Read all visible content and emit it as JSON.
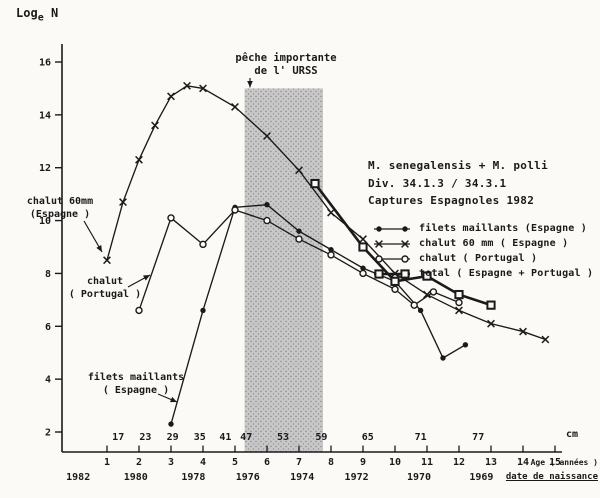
{
  "chart_data": {
    "type": "line",
    "title_block": {
      "line1": "M. senegalensis + M. polli",
      "line2": "Div. 34.1.3  /  34.3.1",
      "line3": "Captures Espagnoles 1982"
    },
    "y_axis": {
      "label": "Log",
      "label_sub": "e",
      "label_unit": "N",
      "lim": [
        2,
        16
      ],
      "ticks": [
        16,
        14,
        12,
        10,
        8,
        6,
        4,
        2
      ]
    },
    "x_axis": {
      "age_label": "Age ( années )",
      "age_lim": [
        0,
        15
      ],
      "age_ticks": [
        1,
        2,
        3,
        4,
        5,
        6,
        7,
        8,
        9,
        10,
        11,
        12,
        13,
        14,
        15
      ],
      "cm_label": "cm",
      "cm_ticks": [
        {
          "cm": "17",
          "age": 1.35
        },
        {
          "cm": "23",
          "age": 2.2
        },
        {
          "cm": "29",
          "age": 3.05
        },
        {
          "cm": "35",
          "age": 3.9
        },
        {
          "cm": "41",
          "age": 4.7
        },
        {
          "cm": "47",
          "age": 5.35
        },
        {
          "cm": "53",
          "age": 6.5
        },
        {
          "cm": "59",
          "age": 7.7
        },
        {
          "cm": "65",
          "age": 9.15
        },
        {
          "cm": "71",
          "age": 10.8
        },
        {
          "cm": "77",
          "age": 12.6
        }
      ],
      "birth_label": "date de naissance",
      "birth_years": [
        {
          "year": "1982",
          "age": 0.1
        },
        {
          "year": "1980",
          "age": 1.9
        },
        {
          "year": "1978",
          "age": 3.7
        },
        {
          "year": "1976",
          "age": 5.4
        },
        {
          "year": "1974",
          "age": 7.1
        },
        {
          "year": "1972",
          "age": 8.8
        },
        {
          "year": "1970",
          "age": 10.75
        },
        {
          "year": "1969",
          "age": 12.7
        }
      ]
    },
    "band": {
      "line1": "pêche importante",
      "line2": "de l' URSS",
      "age_from": 5.3,
      "age_to": 7.75,
      "top_value": 15.0
    },
    "inplot_labels": {
      "chalut60": {
        "line1": "chalut 60mm",
        "line2": "(Espagne )"
      },
      "portugal": {
        "line1": "chalut",
        "line2": "( Portugal )"
      },
      "filets": {
        "line1": "filets maillants",
        "line2": "( Espagne )"
      }
    },
    "series": [
      {
        "id": "filets-maillants-espagne",
        "name": "filets maillants (Espagne )",
        "marker": "dot",
        "bold": false,
        "points": [
          [
            3,
            2.3
          ],
          [
            4,
            6.6
          ],
          [
            5,
            10.5
          ],
          [
            6,
            10.6
          ],
          [
            7,
            9.6
          ],
          [
            8,
            8.9
          ],
          [
            9,
            8.2
          ],
          [
            10,
            7.7
          ],
          [
            10.8,
            6.6
          ],
          [
            11.5,
            4.8
          ],
          [
            12.2,
            5.3
          ]
        ]
      },
      {
        "id": "chalut-60mm-espagne",
        "name": "chalut 60 mm ( Espagne )",
        "marker": "x",
        "bold": false,
        "points": [
          [
            1,
            8.5
          ],
          [
            1.5,
            10.7
          ],
          [
            2,
            12.3
          ],
          [
            2.5,
            13.6
          ],
          [
            3,
            14.7
          ],
          [
            3.5,
            15.1
          ],
          [
            4,
            15.0
          ],
          [
            5,
            14.3
          ],
          [
            6,
            13.2
          ],
          [
            7,
            11.9
          ],
          [
            8,
            10.3
          ],
          [
            9,
            9.3
          ],
          [
            10,
            8.0
          ],
          [
            11,
            7.2
          ],
          [
            12,
            6.6
          ],
          [
            13,
            6.1
          ],
          [
            14,
            5.8
          ],
          [
            14.7,
            5.5
          ]
        ]
      },
      {
        "id": "chalut-portugal",
        "name": "chalut ( Portugal )",
        "marker": "circle",
        "bold": false,
        "points": [
          [
            2,
            6.6
          ],
          [
            3,
            10.1
          ],
          [
            4,
            9.1
          ],
          [
            5,
            10.4
          ],
          [
            6,
            10.0
          ],
          [
            7,
            9.3
          ],
          [
            8,
            8.7
          ],
          [
            9,
            8.0
          ],
          [
            10,
            7.4
          ],
          [
            10.6,
            6.8
          ],
          [
            11.2,
            7.3
          ],
          [
            12,
            6.9
          ]
        ]
      },
      {
        "id": "total-espagne-portugal",
        "name": "total ( Espagne + Portugal )",
        "marker": "square",
        "bold": true,
        "points": [
          [
            7.5,
            11.4
          ],
          [
            9,
            9.0
          ],
          [
            10,
            7.7
          ],
          [
            11,
            7.9
          ],
          [
            12,
            7.2
          ],
          [
            13,
            6.8
          ]
        ]
      }
    ],
    "legend_position": "right-middle",
    "grid": false,
    "colors": {
      "ink": "#1a1a1a",
      "band": "#c8c8c8",
      "band_dots": "#8a8a8a",
      "paper": "#fbfaf6"
    }
  }
}
